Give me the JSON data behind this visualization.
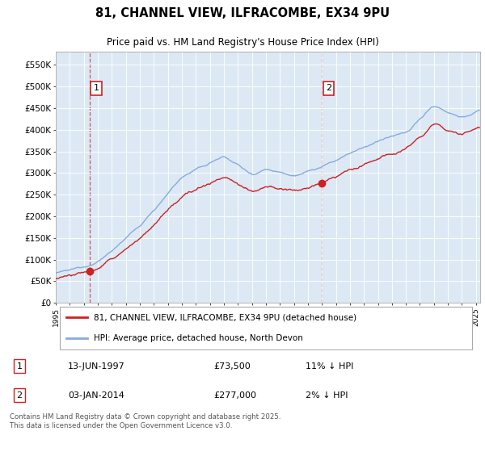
{
  "title": "81, CHANNEL VIEW, ILFRACOMBE, EX34 9PU",
  "subtitle": "Price paid vs. HM Land Registry's House Price Index (HPI)",
  "ylabel_ticks": [
    "£0",
    "£50K",
    "£100K",
    "£150K",
    "£200K",
    "£250K",
    "£300K",
    "£350K",
    "£400K",
    "£450K",
    "£500K",
    "£550K"
  ],
  "ylim": [
    0,
    580000
  ],
  "xlim_start": 1995.0,
  "xlim_end": 2025.3,
  "sale1_x": 1997.44,
  "sale1_y": 73500,
  "sale2_x": 2014.01,
  "sale2_y": 277000,
  "sale1_date": "13-JUN-1997",
  "sale1_price": "£73,500",
  "sale1_hpi": "11% ↓ HPI",
  "sale2_date": "03-JAN-2014",
  "sale2_price": "£277,000",
  "sale2_hpi": "2% ↓ HPI",
  "legend_line1": "81, CHANNEL VIEW, ILFRACOMBE, EX34 9PU (detached house)",
  "legend_line2": "HPI: Average price, detached house, North Devon",
  "footer": "Contains HM Land Registry data © Crown copyright and database right 2025.\nThis data is licensed under the Open Government Licence v3.0.",
  "price_color": "#cc2222",
  "hpi_color": "#88aadd",
  "bg_color": "#dce9f5",
  "box_color": "#cc2222"
}
